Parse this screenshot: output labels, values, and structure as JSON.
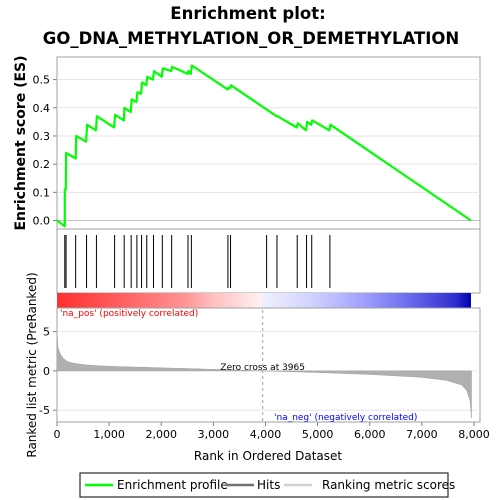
{
  "chart_data": {
    "type": "line",
    "title_line1": "Enrichment plot:",
    "title_line2": "GO_DNA_METHYLATION_OR_DEMETHYLATION",
    "es_panel": {
      "ylabel": "Enrichment score (ES)",
      "ylim": [
        -0.03,
        0.58
      ],
      "yticks": [
        0.0,
        0.1,
        0.2,
        0.3,
        0.4,
        0.5
      ],
      "ytick_labels": [
        "0.0",
        "0.1",
        "0.2",
        "0.3",
        "0.4",
        "0.5"
      ],
      "series": [
        {
          "name": "Enrichment profile",
          "color": "#00ff00",
          "x": [
            0,
            150,
            150,
            170,
            175,
            360,
            370,
            560,
            580,
            750,
            770,
            1100,
            1120,
            1290,
            1300,
            1420,
            1440,
            1530,
            1550,
            1620,
            1640,
            1720,
            1740,
            1850,
            1870,
            2020,
            2040,
            2200,
            2220,
            2520,
            2530,
            2580,
            2600,
            3290,
            3300,
            3340,
            3350,
            4230,
            4250,
            4620,
            4640,
            4800,
            4820,
            4900,
            4920,
            5250,
            5270,
            7980
          ],
          "y": [
            0.0,
            -0.02,
            0.11,
            0.11,
            0.24,
            0.22,
            0.3,
            0.28,
            0.34,
            0.32,
            0.37,
            0.33,
            0.375,
            0.355,
            0.4,
            0.385,
            0.43,
            0.42,
            0.455,
            0.45,
            0.49,
            0.48,
            0.51,
            0.5,
            0.53,
            0.51,
            0.54,
            0.53,
            0.545,
            0.52,
            0.53,
            0.52,
            0.55,
            0.465,
            0.47,
            0.47,
            0.48,
            0.37,
            0.37,
            0.33,
            0.345,
            0.32,
            0.35,
            0.34,
            0.355,
            0.32,
            0.34,
            0.0
          ]
        }
      ]
    },
    "hits_panel": {
      "name": "Hits",
      "hit_positions": [
        150,
        175,
        360,
        570,
        760,
        1110,
        1295,
        1430,
        1540,
        1630,
        1730,
        1860,
        2030,
        2210,
        2525,
        2590,
        3295,
        3345,
        4040,
        4240,
        4630,
        4810,
        4910,
        5260
      ]
    },
    "ranked_panel": {
      "name": "Ranking metric scores",
      "ylabel": "Ranked list metric (PreRanked)",
      "xlabel": "Rank in Ordered Dataset",
      "ylim": [
        -6.5,
        8.0
      ],
      "yticks": [
        -5,
        0,
        5
      ],
      "ytick_labels": [
        "-5",
        "0",
        "5"
      ],
      "xlim": [
        0,
        8000
      ],
      "xticks": [
        0,
        1000,
        2000,
        3000,
        4000,
        5000,
        6000,
        7000,
        8000
      ],
      "xtick_labels": [
        "0",
        "1,000",
        "2,000",
        "3,000",
        "4,000",
        "5,000",
        "6,000",
        "7,000",
        "8,000"
      ],
      "zero_cross": 3965,
      "zero_cross_label": "Zero cross at 3965",
      "pos_label": "'na_pos' (positively correlated)",
      "neg_label": "'na_neg' (negatively correlated)",
      "pos_color": "#ff0000",
      "neg_color": "#0000ff",
      "fill_color": "#b0b0b0",
      "metric_x": [
        0,
        20,
        60,
        120,
        200,
        300,
        500,
        800,
        1200,
        2000,
        3000,
        3965,
        5000,
        6000,
        7000,
        7500,
        7800,
        7900,
        7960,
        7990
      ],
      "metric_y": [
        5.0,
        3.0,
        2.2,
        1.6,
        1.2,
        1.0,
        0.8,
        0.65,
        0.55,
        0.4,
        0.2,
        0.0,
        -0.2,
        -0.45,
        -0.8,
        -1.2,
        -1.8,
        -2.5,
        -3.8,
        -6.0
      ]
    },
    "legend": {
      "items": [
        "Enrichment profile",
        "Hits",
        "Ranking metric scores"
      ]
    }
  }
}
